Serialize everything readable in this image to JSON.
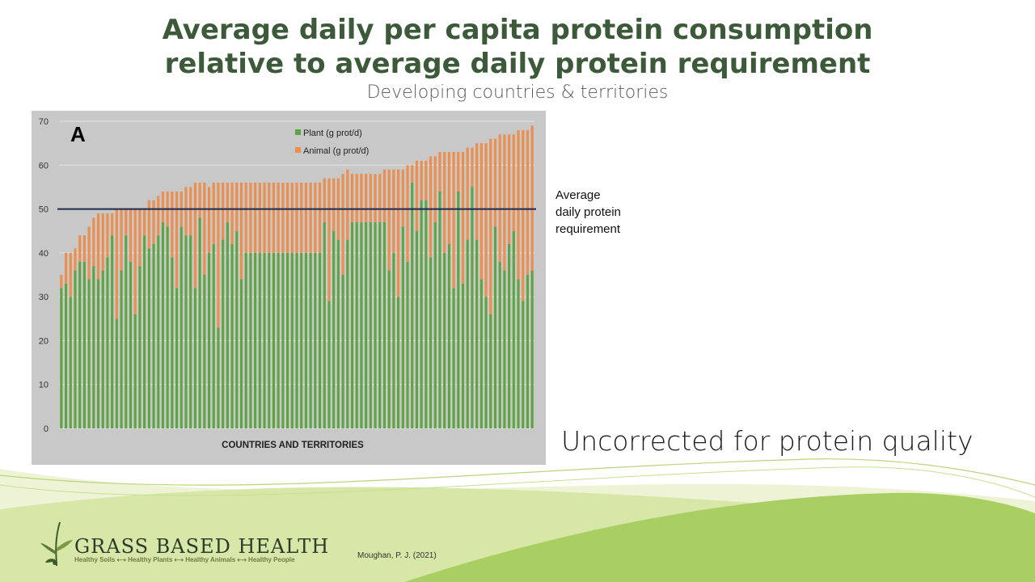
{
  "slide": {
    "title_line1": "Average daily per capita protein consumption",
    "title_line2": "relative to average daily protein requirement",
    "subtitle": "Developing countries & territories",
    "requirement_label": [
      "Average",
      "daily protein",
      "requirement"
    ],
    "note": "Uncorrected for protein quality",
    "citation": "Moughan, P. J. (2021)"
  },
  "logo": {
    "name": "GRASS BASED HEALTH",
    "tagline": "Healthy Soils ⟷ Healthy Plants ⟷ Healthy Animals ⟷ Healthy People"
  },
  "colors": {
    "plant": "#5ea444",
    "animal": "#ec8e4d",
    "requirement_line": "#1f2a4e",
    "title": "#3c5a3a",
    "panel_bg": "#c8c8c8"
  },
  "chart_data": {
    "type": "bar",
    "stacked": true,
    "panel_label": "A",
    "xlabel": "COUNTRIES AND TERRITORIES",
    "ylabel": "",
    "ylim": [
      0,
      70
    ],
    "yticks": [
      0,
      10,
      20,
      30,
      40,
      50,
      60,
      70
    ],
    "grid": true,
    "legend_position": "top-center",
    "reference_line": 50,
    "series": [
      {
        "name": "Plant (g prot/d)",
        "values": [
          32,
          33,
          30,
          36,
          38,
          38,
          34,
          37,
          34,
          36,
          39,
          44,
          25,
          36,
          44,
          38,
          26,
          37,
          44,
          41,
          42,
          44,
          47,
          46,
          39,
          32,
          46,
          44,
          44,
          32,
          48,
          35,
          40,
          42,
          23,
          43,
          47,
          42,
          45,
          34,
          40,
          40,
          40,
          40,
          40,
          40,
          40,
          40,
          40,
          40,
          40,
          40,
          40,
          40,
          40,
          40,
          40,
          47,
          29,
          45,
          43,
          35,
          43,
          47,
          47,
          47,
          47,
          47,
          47,
          47,
          47,
          36,
          40,
          30,
          46,
          38,
          56,
          45,
          52,
          52,
          39,
          47,
          54,
          40,
          42,
          32,
          54,
          33,
          43,
          55,
          43,
          34,
          30,
          26,
          46,
          38,
          36,
          42,
          45,
          34,
          29,
          35,
          36
        ]
      },
      {
        "name": "Animal (g prot/d)",
        "values": [
          3,
          7,
          10,
          5,
          6,
          6,
          12,
          11,
          15,
          13,
          10,
          5,
          25,
          14,
          6,
          12,
          24,
          13,
          6,
          11,
          10,
          9,
          7,
          8,
          15,
          22,
          8,
          11,
          11,
          24,
          8,
          21,
          15,
          14,
          33,
          13,
          9,
          14,
          11,
          22,
          16,
          16,
          16,
          16,
          16,
          16,
          16,
          16,
          16,
          16,
          16,
          16,
          16,
          16,
          16,
          16,
          16,
          10,
          28,
          12,
          14,
          23,
          16,
          11,
          11,
          11,
          11,
          11,
          11,
          11,
          12,
          23,
          19,
          29,
          13,
          22,
          4,
          16,
          9,
          9,
          23,
          15,
          9,
          23,
          21,
          31,
          9,
          30,
          21,
          9,
          22,
          31,
          35,
          40,
          20,
          29,
          31,
          25,
          22,
          34,
          39,
          33,
          33
        ]
      }
    ]
  }
}
